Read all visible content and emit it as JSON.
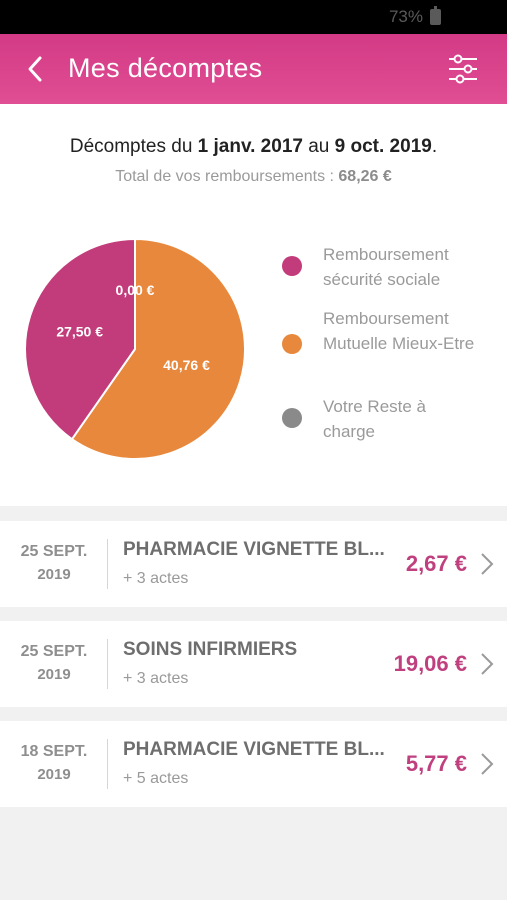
{
  "status_bar": {
    "battery": "73%"
  },
  "header": {
    "title": "Mes décomptes"
  },
  "summary": {
    "period_prefix": "Décomptes du ",
    "period_start": "1 janv. 2017",
    "period_middle": " au ",
    "period_end": "9 oct. 2019",
    "period_suffix": ".",
    "total_label": "Total de vos remboursements : ",
    "total_value": "68,26 €"
  },
  "chart_data": {
    "type": "pie",
    "slices": [
      {
        "label": "Remboursement sécurité sociale",
        "value": 27.5,
        "display": "27,50 €",
        "color": "#c23b7a"
      },
      {
        "label": "Remboursement Mutuelle Mieux-Etre",
        "value": 40.76,
        "display": "40,76 €",
        "color": "#e8883c"
      },
      {
        "label": "Votre Reste à charge",
        "value": 0.0,
        "display": "0,00 €",
        "color": "#8a8a8a"
      }
    ],
    "legend_placement": "right"
  },
  "legend": [
    {
      "label": "Remboursement sécurité sociale",
      "color": "#c23b7a"
    },
    {
      "label": "Remboursement Mutuelle Mieux-Etre",
      "color": "#e8883c"
    },
    {
      "label": "Votre Reste à charge",
      "color": "#8a8a8a"
    }
  ],
  "decomptes": [
    {
      "day": "25 SEPT.",
      "year": "2019",
      "title": "PHARMACIE VIGNETTE BL...",
      "acts": "+ 3 actes",
      "amount": "2,67 €"
    },
    {
      "day": "25 SEPT.",
      "year": "2019",
      "title": "SOINS INFIRMIERS",
      "acts": "+ 3 actes",
      "amount": "19,06 €"
    },
    {
      "day": "18 SEPT.",
      "year": "2019",
      "title": "PHARMACIE VIGNETTE BL...",
      "acts": "+ 5 actes",
      "amount": "5,77 €"
    }
  ],
  "colors": {
    "accent": "#d83f8a",
    "amount": "#c0407f"
  }
}
